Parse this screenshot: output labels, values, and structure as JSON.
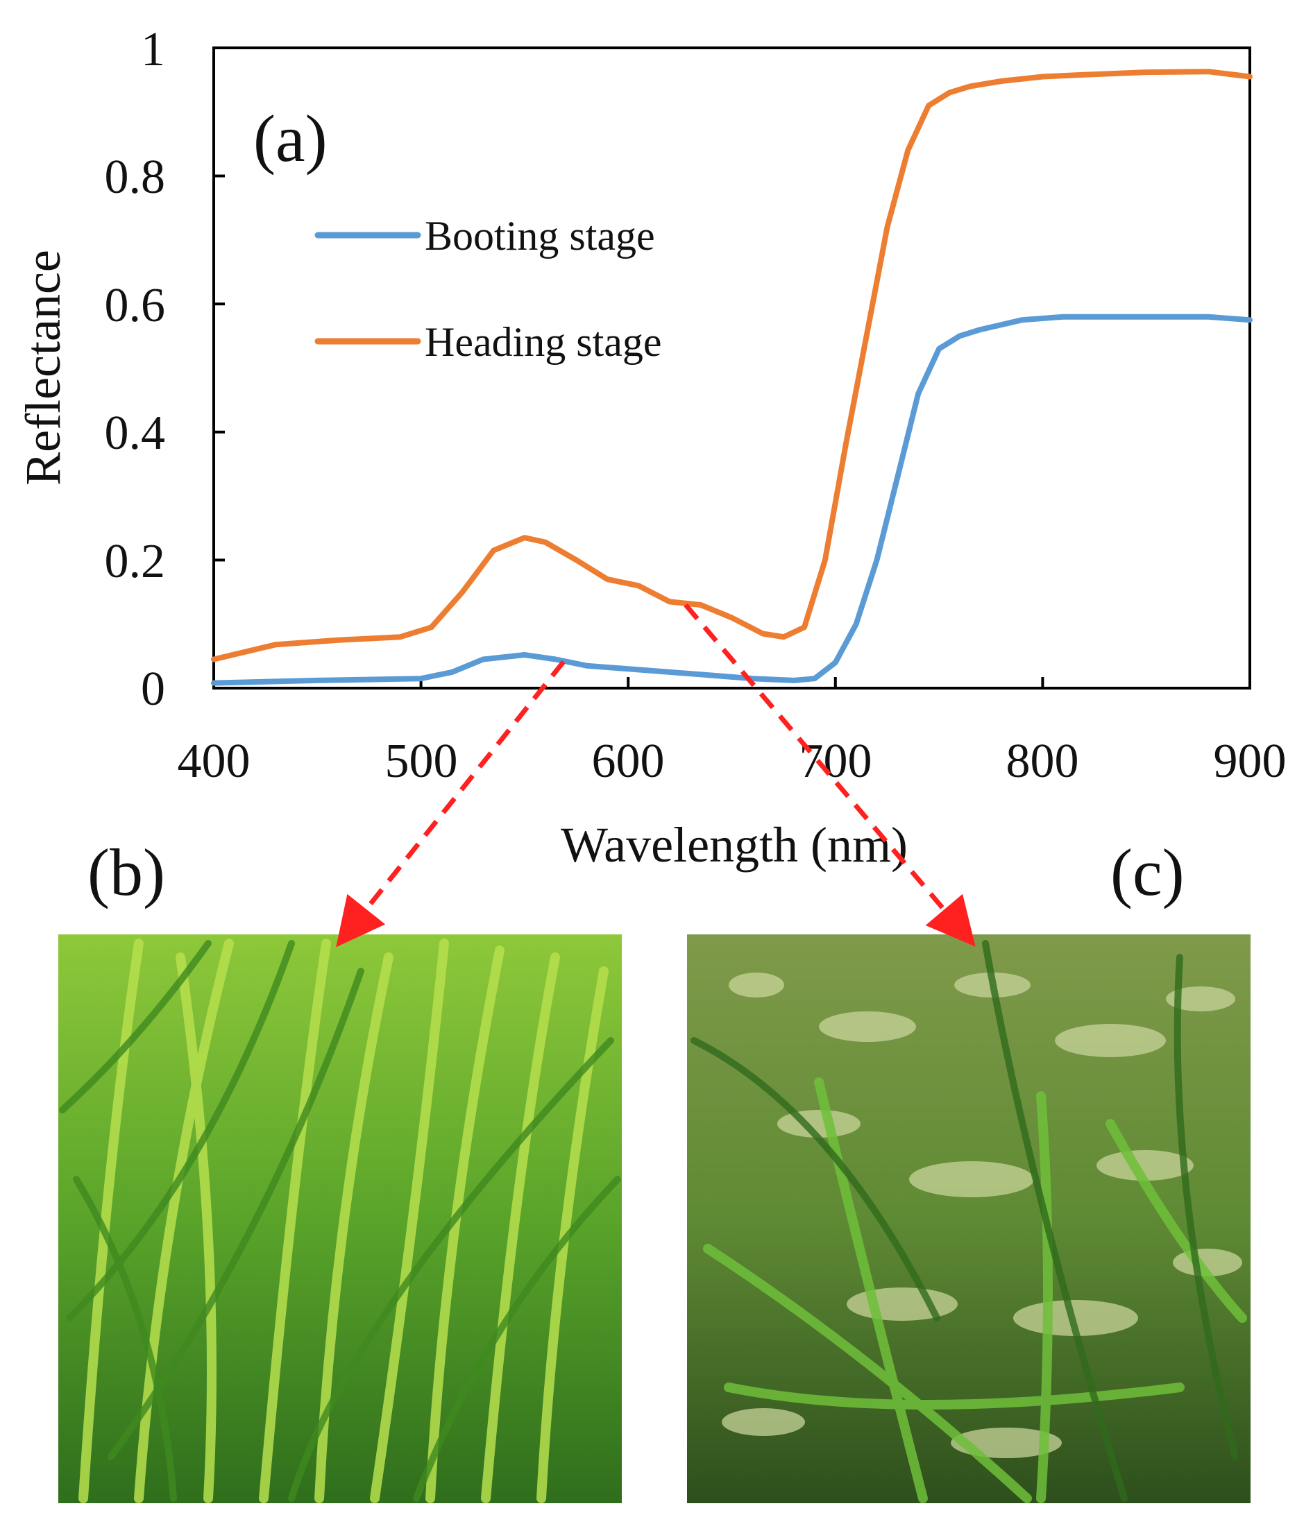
{
  "chart_data": {
    "type": "line",
    "title": "",
    "panel_label": "(a)",
    "xlabel": "Wavelength (nm)",
    "ylabel": "Reflectance",
    "xlim": [
      400,
      900
    ],
    "ylim": [
      0,
      1
    ],
    "xticks": [
      400,
      500,
      600,
      700,
      800,
      900
    ],
    "yticks": [
      0,
      0.2,
      0.4,
      0.6,
      0.8,
      1
    ],
    "ytick_labels": [
      "0",
      "0.2",
      "0.4",
      "0.6",
      "0.8",
      "1"
    ],
    "legend_position": "upper-left",
    "grid": false,
    "series": [
      {
        "name": "Booting stage",
        "color": "#5b9bd5",
        "x": [
          400,
          450,
          500,
          515,
          530,
          550,
          565,
          580,
          600,
          620,
          640,
          660,
          680,
          690,
          700,
          710,
          720,
          730,
          740,
          750,
          760,
          770,
          790,
          810,
          850,
          880,
          900
        ],
        "y": [
          0.008,
          0.012,
          0.015,
          0.025,
          0.045,
          0.052,
          0.045,
          0.035,
          0.03,
          0.025,
          0.02,
          0.015,
          0.012,
          0.015,
          0.04,
          0.1,
          0.2,
          0.33,
          0.46,
          0.53,
          0.55,
          0.56,
          0.575,
          0.58,
          0.58,
          0.58,
          0.575
        ]
      },
      {
        "name": "Heading stage",
        "color": "#ed7d31",
        "x": [
          400,
          430,
          460,
          490,
          505,
          520,
          535,
          550,
          560,
          575,
          590,
          605,
          620,
          635,
          650,
          665,
          675,
          685,
          695,
          705,
          715,
          725,
          735,
          745,
          755,
          765,
          780,
          800,
          820,
          850,
          880,
          900
        ],
        "y": [
          0.045,
          0.068,
          0.075,
          0.08,
          0.095,
          0.15,
          0.215,
          0.235,
          0.228,
          0.2,
          0.17,
          0.16,
          0.135,
          0.13,
          0.11,
          0.085,
          0.08,
          0.095,
          0.2,
          0.38,
          0.55,
          0.72,
          0.84,
          0.91,
          0.93,
          0.94,
          0.948,
          0.955,
          0.958,
          0.962,
          0.963,
          0.955
        ]
      }
    ]
  },
  "panels": {
    "b_label": "(b)",
    "c_label": "(c)"
  },
  "annotations": {
    "arrow_color": "#ff2020"
  }
}
